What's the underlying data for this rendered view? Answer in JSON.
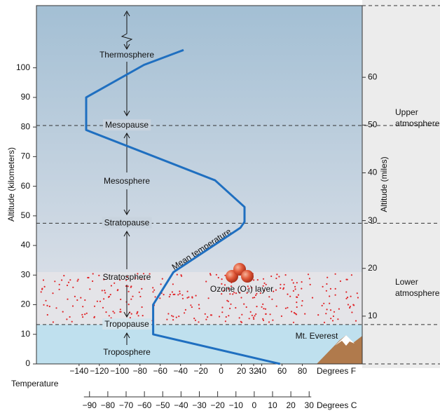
{
  "chart_data": {
    "type": "line",
    "x_title": "Temperature",
    "x_label": "Degrees F",
    "y_label": "Altitude (kilometers)",
    "y2_label": "Altitude (miles)",
    "x2_label": "Degrees C",
    "xlim": [
      -182,
      139
    ],
    "xticks": [
      {
        "value": -140,
        "label": "−140"
      },
      {
        "value": -120,
        "label": "−120"
      },
      {
        "value": -100,
        "label": "−100"
      },
      {
        "value": -80,
        "label": "−80"
      },
      {
        "value": -60,
        "label": "−60"
      },
      {
        "value": -40,
        "label": "−40"
      },
      {
        "value": -20,
        "label": "−20"
      },
      0,
      20,
      32,
      40,
      60,
      80
    ],
    "ylim": [
      0,
      121
    ],
    "yticks": [
      0,
      10,
      20,
      30,
      40,
      50,
      60,
      70,
      80,
      90,
      100
    ],
    "y2lim": [
      0,
      75
    ],
    "y2ticks": [
      10,
      20,
      30,
      40,
      50,
      60
    ],
    "x2lim": [
      -119,
      59
    ],
    "x2ticks": [
      {
        "value": -90,
        "label": "−90"
      },
      {
        "value": -80,
        "label": "−80"
      },
      {
        "value": -70,
        "label": "−70"
      },
      {
        "value": -60,
        "label": "−60"
      },
      {
        "value": -50,
        "label": "−50"
      },
      {
        "value": -40,
        "label": "−40"
      },
      {
        "value": -30,
        "label": "−30"
      },
      {
        "value": -20,
        "label": "−20"
      },
      {
        "value": -10,
        "label": "−10"
      },
      0,
      10,
      20,
      30
    ],
    "series": [
      {
        "name": "Mean temperature",
        "color": "#1f6fc0",
        "x": [
          58,
          -67,
          -67,
          -47,
          19,
          23,
          23,
          -6,
          -133,
          -133,
          -76,
          -37
        ],
        "values": [
          0,
          10,
          20,
          31,
          46,
          48,
          53,
          62,
          79,
          90,
          101,
          106
        ]
      }
    ],
    "reference_lines": [
      {
        "label": "Mesopause",
        "value": 80.5
      },
      {
        "label": "Stratopause",
        "value": 47.5
      },
      {
        "label": "Tropopause",
        "value": 13.3
      }
    ],
    "layers": [
      "Thermosphere",
      "Mesosphere",
      "Stratosphere",
      "Troposphere"
    ],
    "regions": [
      "Upper atmosphere",
      "Lower atmosphere"
    ],
    "annotations": [
      "Ozone (O₃) layer",
      "Mt. Everest"
    ]
  }
}
